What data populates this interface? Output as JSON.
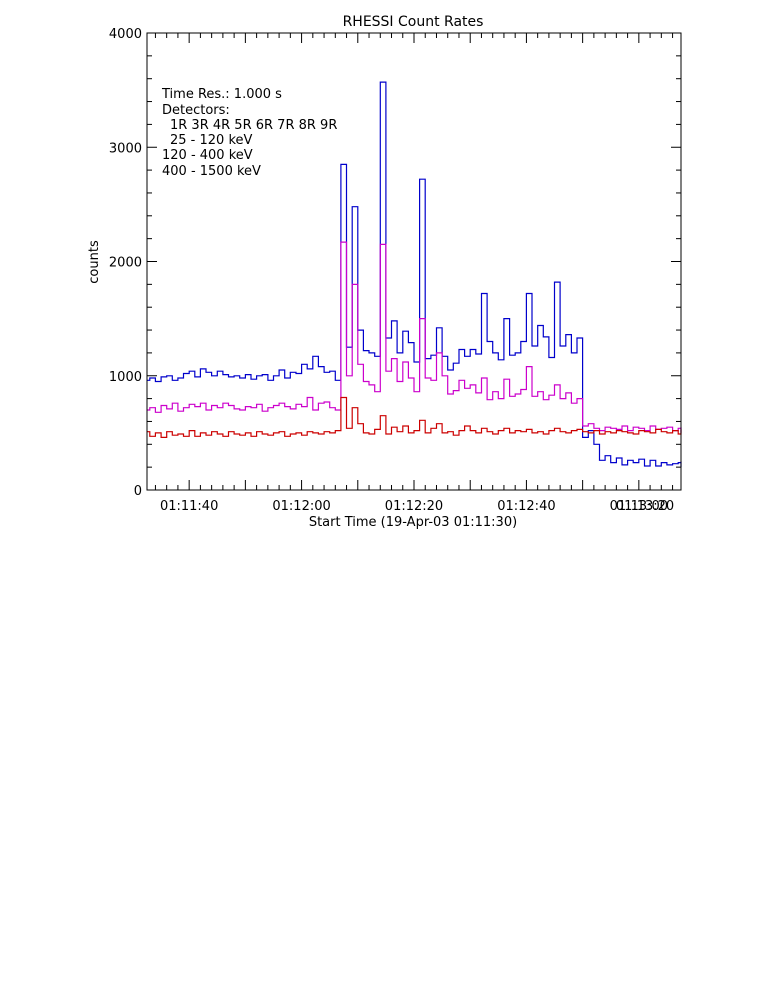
{
  "chart_data": {
    "type": "line",
    "title": "RHESSI Count Rates",
    "xlabel": "Start Time (19-Apr-03 01:11:30)",
    "ylabel": "counts",
    "xlim": [
      2.5,
      97.5
    ],
    "ylim": [
      0,
      4000
    ],
    "xticks": [
      {
        "value": 10,
        "label": "01:11:40"
      },
      {
        "value": 30,
        "label": "01:12:00"
      },
      {
        "value": 50,
        "label": "01:12:20"
      },
      {
        "value": 70,
        "label": "01:12:40"
      },
      {
        "value": 90,
        "label": "01:13:00"
      },
      {
        "value": 110,
        "label": "01:13:20"
      }
    ],
    "yticks": [
      0,
      1000,
      2000,
      3000,
      4000
    ],
    "legend": {
      "placement": "top-left",
      "time_res": "Time Res.: 1.000 s",
      "detectors_label": "Detectors:",
      "detectors": "1R 3R 4R 5R 6R 7R 8R 9R"
    },
    "series": [
      {
        "name": "25 - 120 keV",
        "color": "#0000cc",
        "x_start": 2,
        "x_step": 1.0,
        "values": [
          960,
          980,
          950,
          990,
          1000,
          960,
          980,
          1020,
          1040,
          990,
          1060,
          1030,
          1000,
          1040,
          1010,
          990,
          1000,
          980,
          1010,
          970,
          1000,
          1010,
          960,
          1000,
          1050,
          980,
          1030,
          1020,
          1100,
          1060,
          1170,
          1080,
          1030,
          1040,
          960,
          2850,
          1250,
          2480,
          1400,
          1220,
          1200,
          1170,
          3570,
          1330,
          1480,
          1200,
          1390,
          1290,
          1120,
          2720,
          1150,
          1180,
          1420,
          1170,
          1050,
          1110,
          1230,
          1170,
          1230,
          1190,
          1720,
          1300,
          1200,
          1140,
          1500,
          1180,
          1200,
          1300,
          1720,
          1260,
          1440,
          1340,
          1160,
          1820,
          1260,
          1360,
          1200,
          1330,
          460,
          520,
          400,
          260,
          300,
          240,
          280,
          220,
          260,
          240,
          270,
          210,
          260,
          210,
          240,
          220,
          230,
          240,
          210,
          250,
          210,
          210,
          230,
          210,
          220,
          230,
          210,
          220,
          230,
          210,
          230,
          200,
          210,
          230,
          210,
          220,
          230,
          210,
          220,
          230,
          210,
          220,
          230,
          240,
          220,
          210,
          220,
          230,
          220,
          240,
          220,
          230,
          220,
          210
        ]
      },
      {
        "name": "120 - 400 keV",
        "color": "#cc00cc",
        "x_start": 2,
        "x_step": 1.0,
        "values": [
          700,
          720,
          680,
          740,
          710,
          760,
          690,
          720,
          750,
          730,
          760,
          700,
          740,
          720,
          760,
          740,
          710,
          700,
          730,
          720,
          750,
          690,
          720,
          740,
          760,
          730,
          710,
          750,
          730,
          810,
          700,
          760,
          770,
          720,
          700,
          2170,
          1000,
          1800,
          1100,
          950,
          920,
          860,
          2150,
          1040,
          1150,
          950,
          1120,
          980,
          860,
          1500,
          980,
          960,
          1200,
          1000,
          840,
          870,
          960,
          890,
          920,
          850,
          980,
          790,
          860,
          800,
          970,
          820,
          840,
          880,
          1080,
          820,
          860,
          790,
          830,
          920,
          800,
          850,
          760,
          800,
          560,
          580,
          540,
          520,
          550,
          540,
          530,
          560,
          520,
          550,
          540,
          520,
          560,
          530,
          540,
          550,
          520,
          540,
          510,
          540,
          530,
          520,
          550,
          530,
          520,
          540,
          500,
          530,
          520,
          540,
          510,
          530,
          520,
          540,
          520,
          500,
          530,
          520,
          540,
          510,
          530,
          520,
          500,
          540,
          510,
          520,
          530,
          510,
          520,
          530,
          520,
          510
        ]
      },
      {
        "name": "400 - 1500 keV",
        "color": "#cc0000",
        "x_start": 2,
        "x_step": 1.0,
        "values": [
          510,
          470,
          500,
          460,
          510,
          480,
          490,
          470,
          520,
          470,
          500,
          480,
          510,
          490,
          470,
          510,
          490,
          480,
          500,
          470,
          510,
          490,
          480,
          500,
          510,
          470,
          490,
          500,
          480,
          510,
          500,
          490,
          510,
          500,
          520,
          810,
          540,
          720,
          580,
          500,
          490,
          530,
          650,
          490,
          550,
          510,
          560,
          500,
          520,
          610,
          500,
          540,
          580,
          500,
          510,
          480,
          520,
          560,
          520,
          500,
          540,
          510,
          490,
          520,
          540,
          500,
          520,
          510,
          530,
          500,
          510,
          490,
          520,
          540,
          510,
          500,
          520,
          530,
          510,
          500,
          520,
          490,
          510,
          500,
          520,
          510,
          500,
          490,
          520,
          510,
          500,
          530,
          510,
          500,
          520,
          490,
          510,
          530,
          500,
          510,
          520,
          500,
          530,
          510,
          520,
          500,
          490,
          510,
          530,
          500,
          510,
          520,
          500,
          510,
          490,
          520,
          530,
          510,
          500,
          520,
          510,
          500,
          490,
          510,
          520,
          500,
          510,
          520,
          500,
          510
        ]
      }
    ]
  }
}
